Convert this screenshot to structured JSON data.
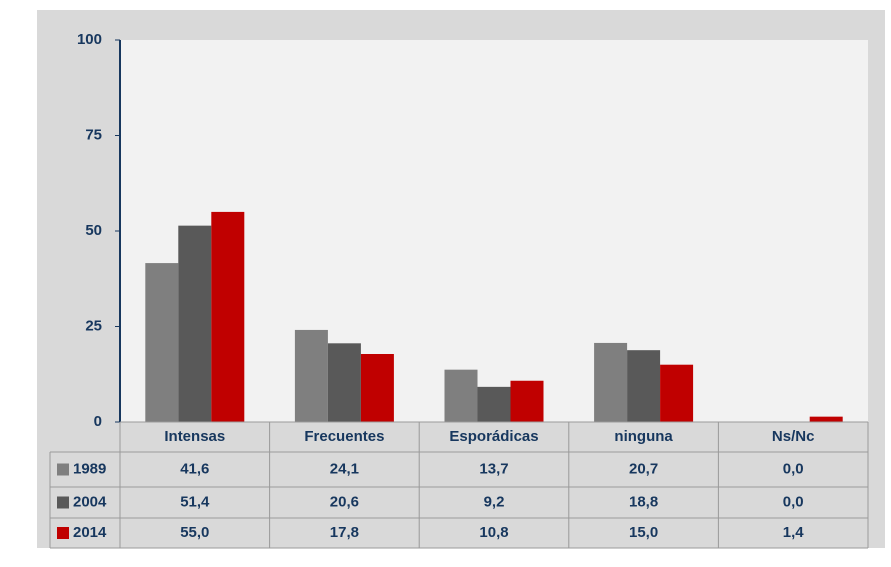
{
  "chart_data": {
    "type": "bar",
    "categories": [
      "Intensas",
      "Frecuentes",
      "Esporádicas",
      "ninguna",
      "Ns/Nc"
    ],
    "series": [
      {
        "name": "1989",
        "color": "#7f7f7f",
        "values": [
          41.6,
          24.1,
          13.7,
          20.7,
          0.0
        ],
        "value_labels": [
          "41,6",
          "24,1",
          "13,7",
          "20,7",
          "0,0"
        ]
      },
      {
        "name": "2004",
        "color": "#595959",
        "values": [
          51.4,
          20.6,
          9.2,
          18.8,
          0.0
        ],
        "value_labels": [
          "51,4",
          "20,6",
          "9,2",
          "18,8",
          "0,0"
        ]
      },
      {
        "name": "2014",
        "color": "#c00000",
        "values": [
          55.0,
          17.8,
          10.8,
          15.0,
          1.4
        ],
        "value_labels": [
          "55,0",
          "17,8",
          "10,8",
          "15,0",
          "1,4"
        ]
      }
    ],
    "ylim": [
      0,
      100
    ],
    "yticks": [
      0,
      25,
      50,
      75,
      100
    ],
    "grid": false,
    "data_table": true
  }
}
